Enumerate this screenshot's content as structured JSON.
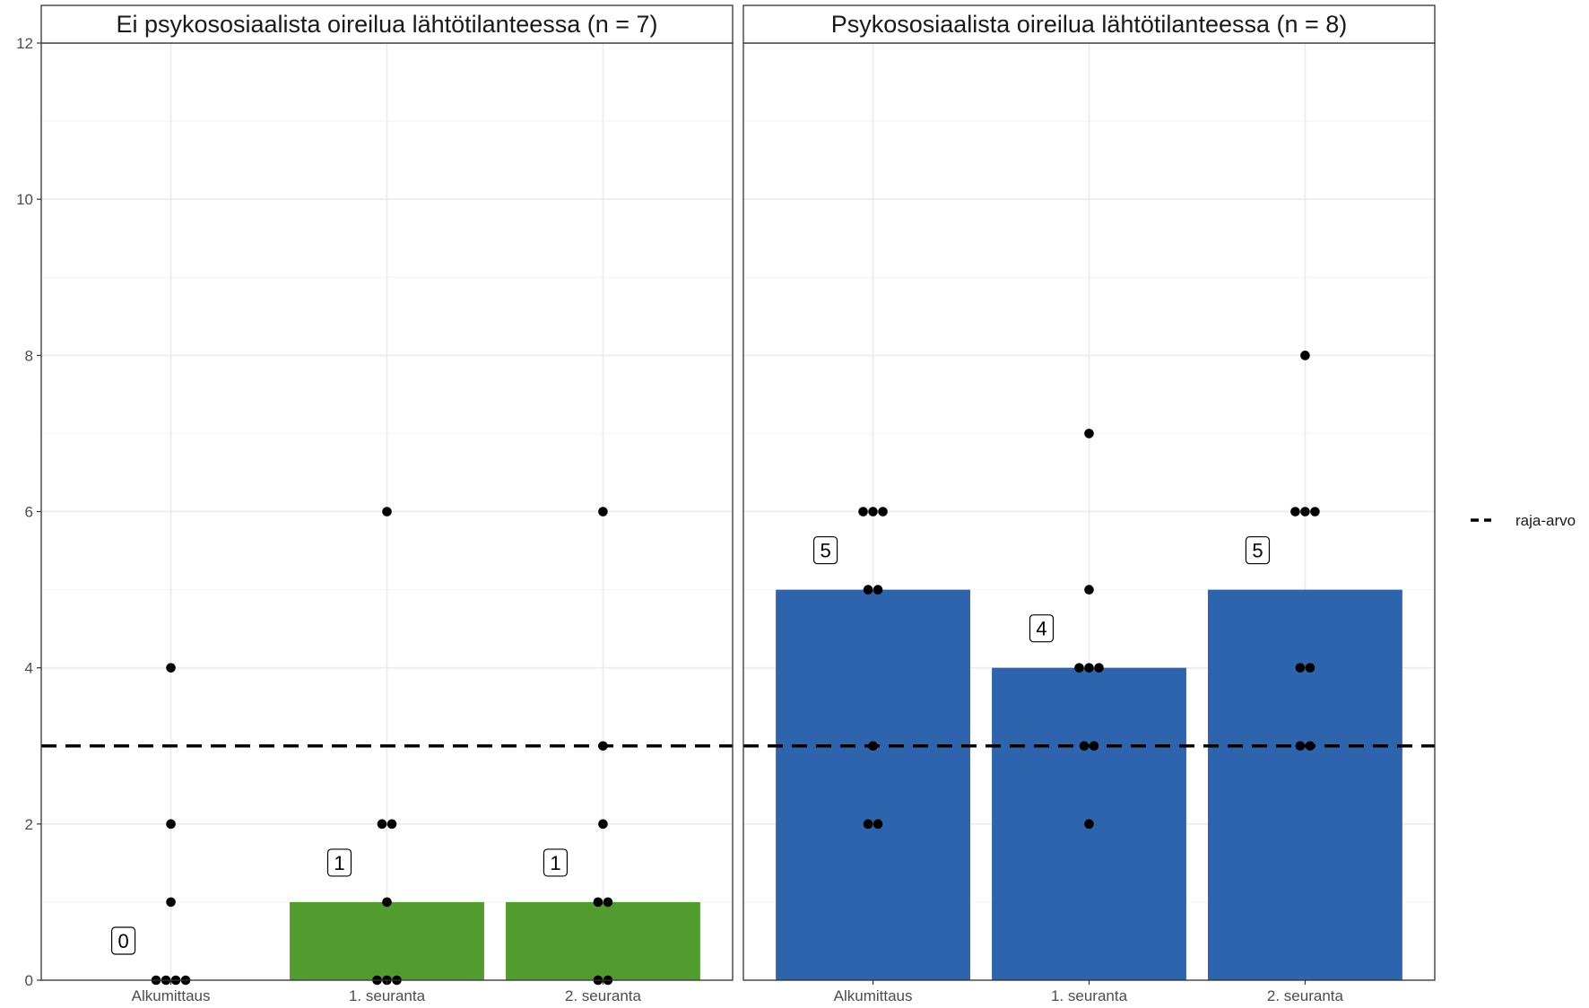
{
  "chart_data": {
    "type": "bar",
    "y_axis": {
      "ylim": [
        0,
        12
      ],
      "ticks": [
        0,
        2,
        4,
        6,
        8,
        10,
        12
      ]
    },
    "categories": [
      "Alkumittaus",
      "1. seuranta",
      "2. seuranta"
    ],
    "reference_line": {
      "value": 3,
      "style": "dashed",
      "legend_label": "raja-arvo"
    },
    "legend": {
      "position": "right",
      "entries": [
        "raja-arvo"
      ]
    },
    "grid": true,
    "panels": [
      {
        "title": "Ei psykososiaalista oireilua lähtötilanteessa (n = 7)",
        "bar_color": "#529c2f",
        "bars": [
          0,
          1,
          1
        ],
        "bar_labels": [
          "0",
          "1",
          "1"
        ],
        "points": [
          [
            4,
            2,
            1,
            0,
            0,
            0,
            0
          ],
          [
            6,
            2,
            2,
            1,
            0,
            0,
            0
          ],
          [
            6,
            3,
            2,
            1,
            1,
            0,
            0
          ]
        ]
      },
      {
        "title": "Psykososiaalista oireilua lähtötilanteessa (n = 8)",
        "bar_color": "#2e63ae",
        "bars": [
          5,
          4,
          5
        ],
        "bar_labels": [
          "5",
          "4",
          "5"
        ],
        "points": [
          [
            6,
            6,
            6,
            5,
            5,
            3,
            2,
            2
          ],
          [
            7,
            5,
            4,
            4,
            4,
            3,
            3,
            2
          ],
          [
            8,
            6,
            6,
            6,
            4,
            4,
            3,
            3
          ]
        ]
      }
    ]
  }
}
